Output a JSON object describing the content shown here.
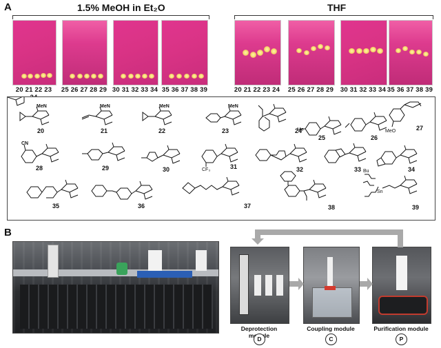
{
  "panel_a": {
    "letter": "A",
    "condition_left": "1.5% MeOH in Et₂O",
    "condition_right": "THF",
    "plates": [
      {
        "lanes": "20 21 22 23 24"
      },
      {
        "lanes": "25 26 27 28 29"
      },
      {
        "lanes": "30 31 32 33 34"
      },
      {
        "lanes": "35 36 37 38 39"
      },
      {
        "lanes": "20 21 22 23 24"
      },
      {
        "lanes": "25 26 27 28 29"
      },
      {
        "lanes": "30 31 32 33 34"
      },
      {
        "lanes": "35 36 37 38 39"
      }
    ]
  },
  "compounds": {
    "labels": [
      "20",
      "21",
      "22",
      "23",
      "24",
      "25",
      "26",
      "27",
      "28",
      "29",
      "30",
      "31",
      "32",
      "33",
      "34",
      "35",
      "36",
      "37",
      "38",
      "39"
    ],
    "fragments": {
      "meN": "MeN",
      "b": "B",
      "o": "O",
      "me": "Me",
      "cf3": "CF₃",
      "cn": "CN",
      "meo": "MeO",
      "bu": "Bu",
      "sn": "Sn",
      "n": "N",
      "s": "S"
    }
  },
  "panel_b": {
    "letter": "B",
    "modules": [
      {
        "label": "Deprotection module",
        "code": "D"
      },
      {
        "label": "Coupling module",
        "code": "C"
      },
      {
        "label": "Purification module",
        "code": "P"
      }
    ]
  }
}
